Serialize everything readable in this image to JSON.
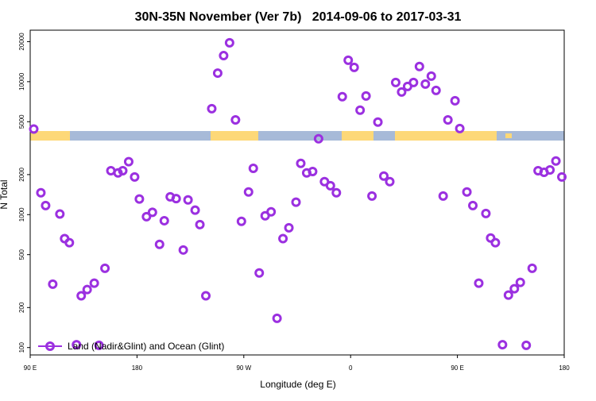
{
  "chart_data": {
    "type": "scatter",
    "title": "30N-35N November (Ver 7b)   2014-09-06 to 2017-03-31",
    "x_label": "Longitude (deg E)",
    "y_label": "N Total",
    "yscale": "log",
    "color": "#9b30e0",
    "legend_position": "bottom-left",
    "xlim": [
      90,
      540
    ],
    "xticks": [
      {
        "value": 90,
        "label": "90 E"
      },
      {
        "value": 180,
        "label": "180"
      },
      {
        "value": 270,
        "label": "90 W"
      },
      {
        "value": 360,
        "label": "0"
      },
      {
        "value": 450,
        "label": "90 E"
      },
      {
        "value": 540,
        "label": "180"
      }
    ],
    "ylim": [
      88,
      24400
    ],
    "yticks": [
      100,
      200,
      500,
      1000,
      2000,
      5000,
      10000,
      20000
    ],
    "series": [
      {
        "name": "Land (Nadir&Glint) and Ocean (Glint)",
        "color": "#9b30e0",
        "x": [
          93,
          99,
          103,
          109,
          115,
          119,
          123,
          129,
          133,
          138,
          144,
          148,
          153,
          158,
          164,
          168,
          173,
          178,
          182,
          188,
          193,
          199,
          203,
          208,
          213,
          219,
          223,
          229,
          233,
          238,
          243,
          248,
          253,
          258,
          263,
          268,
          274,
          278,
          283,
          288,
          293,
          298,
          303,
          308,
          314,
          318,
          323,
          328,
          333,
          338,
          343,
          348,
          353,
          358,
          363,
          368,
          373,
          378,
          383,
          388,
          393,
          398,
          403,
          408,
          413,
          418,
          423,
          428,
          432,
          438,
          442,
          448,
          452,
          458,
          463,
          468,
          474,
          478,
          482,
          488,
          493,
          498,
          503,
          508,
          513,
          518,
          523,
          528,
          533,
          538
        ],
        "values": [
          4400,
          1460,
          1170,
          300,
          1010,
          660,
          615,
          105,
          245,
          273,
          305,
          104,
          395,
          2140,
          2060,
          2140,
          2500,
          1920,
          1310,
          965,
          1040,
          597,
          900,
          1360,
          1320,
          542,
          1290,
          1080,
          841,
          245,
          6260,
          11600,
          15700,
          19600,
          5160,
          890,
          1480,
          2230,
          364,
          980,
          1050,
          166,
          660,
          796,
          1240,
          2430,
          2060,
          2110,
          3720,
          1770,
          1650,
          1460,
          7710,
          14500,
          12800,
          6100,
          7810,
          1380,
          4970,
          1950,
          1770,
          9860,
          8360,
          9200,
          9860,
          13000,
          9600,
          11000,
          8590,
          1380,
          5160,
          7190,
          4440,
          1480,
          1170,
          305,
          1020,
          667,
          615,
          105,
          248,
          277,
          309,
          104,
          395,
          2140,
          2080,
          2170,
          2530,
          1920
        ]
      }
    ]
  }
}
